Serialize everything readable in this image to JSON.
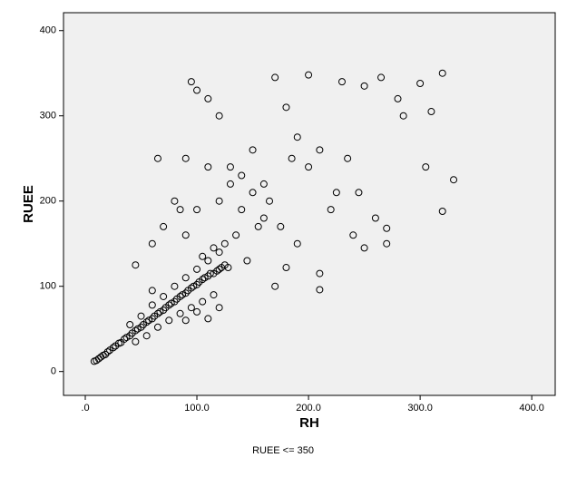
{
  "chart_data": {
    "type": "scatter",
    "x_label": "RH",
    "y_label": "RUEE",
    "footnote": "RUEE <= 350",
    "xlim": [
      -19.5,
      421
    ],
    "ylim": [
      -28,
      421
    ],
    "xticks": [
      {
        "value": 0,
        "label": ".0"
      },
      {
        "value": 100,
        "label": "100.0"
      },
      {
        "value": 200,
        "label": "200.0"
      },
      {
        "value": 300,
        "label": "300.0"
      },
      {
        "value": 400,
        "label": "400.0"
      }
    ],
    "yticks": [
      0,
      100,
      200,
      300,
      400
    ],
    "color": "#000000",
    "background": "#f0f0f0",
    "x": [
      8,
      10,
      12,
      14,
      16,
      18,
      20,
      22,
      25,
      27,
      30,
      32,
      35,
      37,
      40,
      42,
      45,
      47,
      50,
      52,
      55,
      57,
      60,
      62,
      65,
      67,
      70,
      72,
      75,
      77,
      80,
      82,
      85,
      87,
      90,
      92,
      95,
      97,
      100,
      102,
      105,
      107,
      110,
      112,
      115,
      118,
      120,
      122,
      125,
      128,
      40,
      50,
      60,
      70,
      80,
      90,
      100,
      110,
      120,
      45,
      55,
      65,
      75,
      85,
      95,
      105,
      115,
      60,
      70,
      80,
      90,
      100,
      110,
      95,
      120,
      130,
      150,
      160,
      170,
      180,
      200,
      190,
      210,
      230,
      250,
      265,
      280,
      300,
      320,
      310,
      305,
      320,
      330,
      270,
      270,
      250,
      240,
      210,
      210,
      190,
      180,
      170,
      160,
      150,
      140,
      145,
      130,
      120,
      110,
      100,
      90,
      85,
      65,
      45,
      60,
      100,
      120,
      110,
      90,
      140,
      165,
      175,
      200,
      220,
      235,
      245,
      260,
      285,
      155,
      135,
      125,
      115,
      105,
      185,
      225
    ],
    "values": [
      12,
      13,
      15,
      17,
      19,
      20,
      23,
      25,
      28,
      30,
      33,
      34,
      38,
      40,
      42,
      45,
      48,
      50,
      52,
      55,
      58,
      60,
      62,
      65,
      68,
      70,
      72,
      75,
      78,
      80,
      82,
      85,
      88,
      90,
      92,
      95,
      98,
      100,
      102,
      105,
      108,
      110,
      112,
      115,
      115,
      118,
      120,
      122,
      125,
      122,
      55,
      65,
      78,
      88,
      100,
      110,
      120,
      130,
      140,
      35,
      42,
      52,
      60,
      68,
      75,
      82,
      90,
      150,
      170,
      200,
      250,
      330,
      320,
      340,
      300,
      240,
      260,
      220,
      345,
      310,
      348,
      275,
      260,
      340,
      335,
      345,
      320,
      338,
      350,
      305,
      240,
      188,
      225,
      168,
      150,
      145,
      160,
      115,
      96,
      150,
      122,
      100,
      180,
      210,
      190,
      130,
      220,
      200,
      240,
      190,
      160,
      190,
      250,
      125,
      95,
      70,
      75,
      62,
      60,
      230,
      200,
      170,
      240,
      190,
      250,
      210,
      180,
      300,
      170,
      160,
      150,
      145,
      135,
      250,
      210
    ]
  }
}
